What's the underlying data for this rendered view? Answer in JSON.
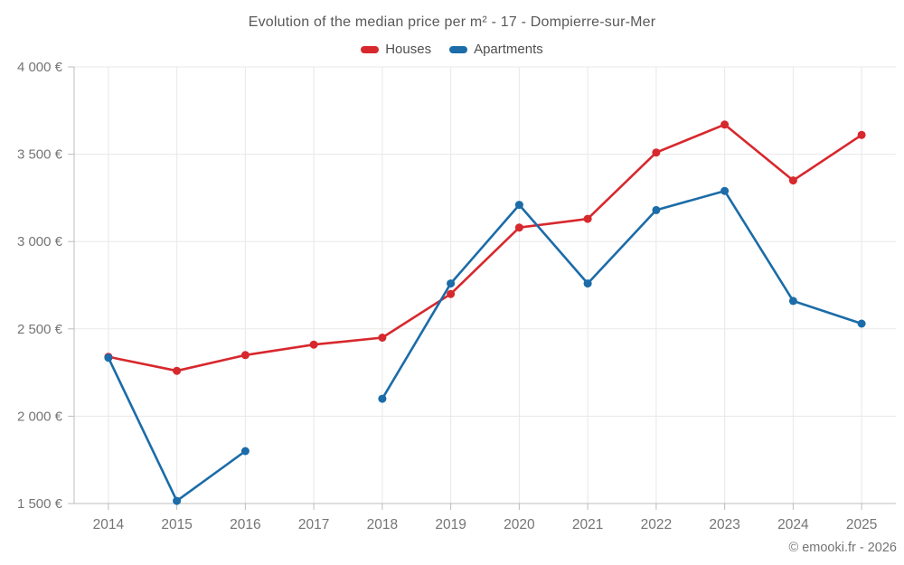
{
  "title": "Evolution of the median price per m² - 17 - Dompierre-sur-Mer",
  "footer": "© emooki.fr - 2026",
  "legend": [
    {
      "label": "Houses",
      "color": "#d7282d"
    },
    {
      "label": "Apartments",
      "color": "#1b6ca8"
    }
  ],
  "chart_data": {
    "type": "line",
    "x": [
      2014,
      2015,
      2016,
      2017,
      2018,
      2019,
      2020,
      2021,
      2022,
      2023,
      2024,
      2025
    ],
    "series": [
      {
        "name": "Houses",
        "color": "#d7282d",
        "values": [
          2340,
          2260,
          2350,
          2410,
          2450,
          2700,
          3080,
          3130,
          3510,
          3670,
          3350,
          3610
        ]
      },
      {
        "name": "Apartments",
        "color": "#1b6ca8",
        "values": [
          2335,
          1515,
          1800,
          null,
          2100,
          2760,
          3210,
          2760,
          3180,
          3290,
          2660,
          2530
        ]
      }
    ],
    "title": "Evolution of the median price per m² - 17 - Dompierre-sur-Mer",
    "xlabel": "",
    "ylabel": "",
    "yticks": [
      1500,
      2000,
      2500,
      3000,
      3500,
      4000
    ],
    "ytick_suffix": "€",
    "ylim": [
      1500,
      4000
    ],
    "grid": true,
    "legend_position": "top",
    "grid_color": "#e8e8e8",
    "axis_color": "#bdbdbd",
    "tick_label_color": "#757575"
  }
}
